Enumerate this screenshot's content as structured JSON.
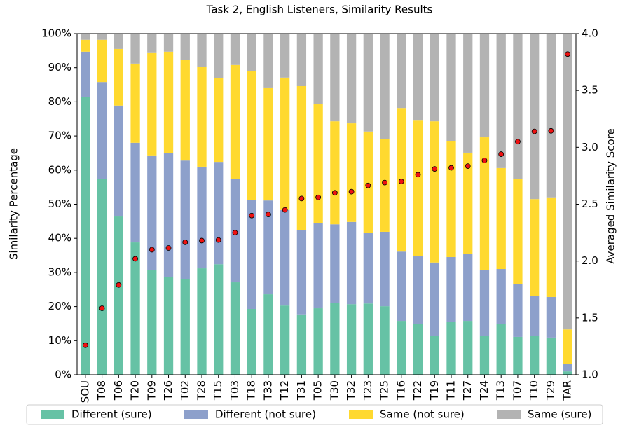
{
  "chart_data": {
    "type": "bar",
    "stacked": true,
    "title": "Task 2, English Listeners, Similarity Results",
    "ylabel": "Similarity Percentage",
    "y2label": "Averaged Similarity Score",
    "categories": [
      "SOU",
      "T08",
      "T06",
      "T20",
      "T09",
      "T26",
      "T02",
      "T28",
      "T15",
      "T03",
      "T18",
      "T33",
      "T12",
      "T31",
      "T05",
      "T30",
      "T32",
      "T23",
      "T25",
      "T16",
      "T22",
      "T19",
      "T11",
      "T27",
      "T24",
      "T13",
      "T07",
      "T10",
      "T29",
      "TAR"
    ],
    "series": [
      {
        "name": "Different (sure)",
        "color": "#66c2a5",
        "values": [
          81.5,
          57.3,
          46.4,
          38.8,
          30.8,
          28.7,
          28.1,
          31.2,
          32.4,
          27.1,
          19.3,
          23.6,
          20.3,
          17.7,
          19.5,
          21.1,
          20.7,
          20.9,
          20.1,
          15.8,
          14.8,
          11.3,
          15.4,
          15.8,
          11.3,
          14.8,
          11.1,
          11.3,
          10.9,
          1.0
        ]
      },
      {
        "name": "Different (not sure)",
        "color": "#8da0cb",
        "values": [
          13.2,
          28.5,
          32.5,
          29.2,
          33.5,
          36.2,
          34.7,
          29.8,
          30.0,
          30.2,
          32.0,
          27.5,
          28.0,
          24.6,
          24.9,
          23.0,
          24.1,
          20.6,
          21.8,
          20.3,
          19.9,
          21.6,
          19.1,
          19.7,
          19.3,
          16.2,
          15.4,
          11.9,
          11.9,
          2.1
        ]
      },
      {
        "name": "Same (not sure)",
        "color": "#ffd92f",
        "values": [
          3.5,
          12.4,
          16.6,
          23.2,
          30.2,
          29.8,
          29.4,
          29.3,
          24.5,
          33.5,
          37.8,
          33.1,
          38.8,
          42.3,
          34.9,
          30.2,
          28.9,
          29.8,
          27.1,
          42.1,
          39.8,
          41.4,
          33.9,
          29.6,
          39.0,
          29.6,
          30.8,
          28.3,
          29.2,
          10.2
        ]
      },
      {
        "name": "Same (sure)",
        "color": "#b3b3b3",
        "values": [
          1.8,
          1.8,
          4.5,
          8.8,
          5.5,
          5.3,
          7.8,
          9.7,
          13.1,
          9.2,
          10.9,
          15.8,
          12.9,
          15.4,
          20.7,
          25.7,
          26.3,
          28.7,
          31.0,
          21.8,
          25.5,
          25.7,
          31.6,
          34.9,
          30.4,
          39.4,
          42.7,
          48.5,
          48.0,
          86.7
        ]
      },
      {
        "type": "scatter",
        "axis": "y2",
        "color": "#ee1111",
        "values": [
          1.26,
          1.585,
          1.79,
          2.02,
          2.1,
          2.115,
          2.165,
          2.18,
          2.185,
          2.25,
          2.4,
          2.41,
          2.45,
          2.55,
          2.56,
          2.6,
          2.61,
          2.665,
          2.69,
          2.7,
          2.76,
          2.81,
          2.82,
          2.835,
          2.885,
          2.94,
          3.05,
          3.14,
          3.145,
          3.82
        ]
      }
    ],
    "ylim": [
      0,
      100
    ],
    "yticks": [
      {
        "value": 0,
        "label": "0%"
      },
      {
        "value": 10,
        "label": "10%"
      },
      {
        "value": 20,
        "label": "20%"
      },
      {
        "value": 30,
        "label": "30%"
      },
      {
        "value": 40,
        "label": "40%"
      },
      {
        "value": 50,
        "label": "50%"
      },
      {
        "value": 60,
        "label": "60%"
      },
      {
        "value": 70,
        "label": "70%"
      },
      {
        "value": 80,
        "label": "80%"
      },
      {
        "value": 90,
        "label": "90%"
      },
      {
        "value": 100,
        "label": "100%"
      }
    ],
    "y2lim": [
      1.0,
      4.0
    ],
    "y2ticks": [
      {
        "value": 1,
        "label": "1.0"
      },
      {
        "value": 1.5,
        "label": "1.5"
      },
      {
        "value": 2,
        "label": "2.0"
      },
      {
        "value": 2.5,
        "label": "2.5"
      },
      {
        "value": 3,
        "label": "3.0"
      },
      {
        "value": 3.5,
        "label": "3.5"
      },
      {
        "value": 4,
        "label": "4.0"
      }
    ],
    "legend": "bottom"
  }
}
